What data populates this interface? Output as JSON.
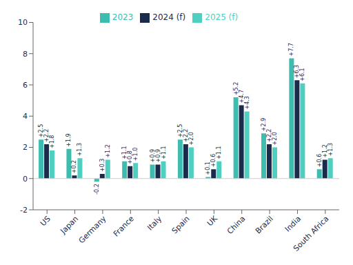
{
  "chart_data": {
    "type": "bar",
    "categories": [
      "US",
      "Japan",
      "Germany",
      "France",
      "Italy",
      "Spain",
      "UK",
      "China",
      "Brazil",
      "India",
      "South Africa"
    ],
    "series": [
      {
        "name": "2023",
        "color": "#3dbdb0",
        "values": [
          2.5,
          1.9,
          -0.2,
          1.1,
          0.9,
          2.5,
          0.1,
          5.2,
          2.9,
          7.7,
          0.6
        ],
        "value_labels": [
          "+2.5",
          "+1.9",
          "-0.2",
          "+1.1",
          "+0.9",
          "+2.5",
          "+0.1",
          "+5.2",
          "+2.9",
          "+7.7",
          "+0.6"
        ]
      },
      {
        "name": "2024 (f)",
        "color": "#1b2b4b",
        "values": [
          2.2,
          0.2,
          0.3,
          0.8,
          0.9,
          2.2,
          0.6,
          4.7,
          2.2,
          6.3,
          1.2
        ],
        "value_labels": [
          "+2.2",
          "+0.2",
          "+0.3",
          "+0.8",
          "+0.9",
          "+2.2",
          "+0.6",
          "+4.7",
          "+2.2",
          "+6.3",
          "+1.2"
        ]
      },
      {
        "name": "2025 (f)",
        "color": "#4ecfc0",
        "values": [
          1.8,
          1.3,
          1.2,
          1.0,
          1.1,
          2.0,
          1.1,
          4.3,
          2.0,
          6.1,
          1.3
        ],
        "value_labels": [
          "+1.8",
          "+1.3",
          "+1.2",
          "+1.0",
          "+1.1",
          "+2.0",
          "+1.1",
          "+4.3",
          "+2.0",
          "+6.1",
          "+1.3"
        ]
      }
    ],
    "ylim": [
      -2,
      10
    ],
    "yticks": [
      -2,
      0,
      2,
      4,
      6,
      8,
      10
    ],
    "grid": false,
    "legend": "top",
    "data_labels": true
  }
}
